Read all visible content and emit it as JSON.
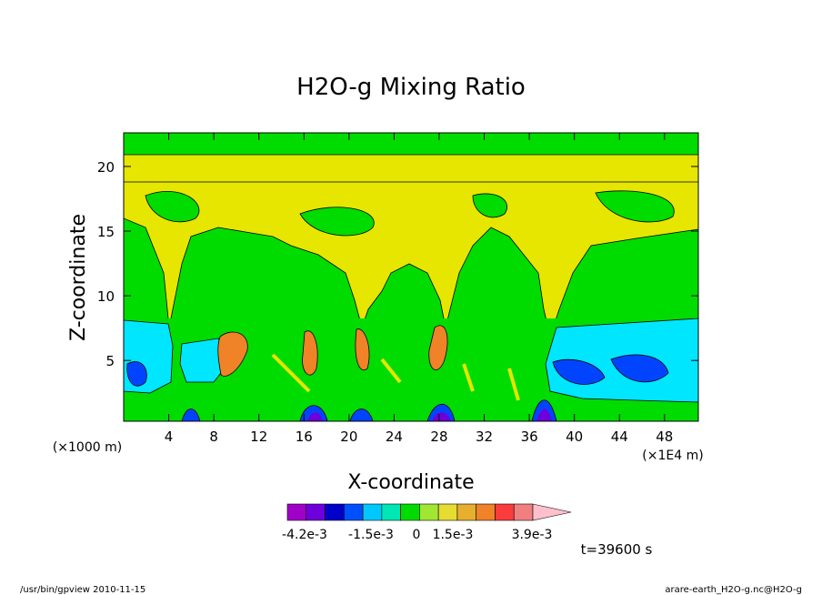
{
  "chart_data": {
    "type": "heatmap",
    "title": "H2O-g Mixing Ratio",
    "xlabel": "X-coordinate",
    "ylabel": "Z-coordinate",
    "x_unit_left": "(×1000 m)",
    "x_unit_right": "(×1E4 m)",
    "xlim": [
      0,
      51
    ],
    "ylim": [
      0.3,
      22.6
    ],
    "xticks": [
      4,
      8,
      12,
      16,
      20,
      24,
      28,
      32,
      36,
      40,
      44,
      48
    ],
    "yticks": [
      5,
      10,
      15,
      20
    ],
    "colorbar": {
      "colors": [
        "#a000c8",
        "#6e00dc",
        "#0000c8",
        "#0050ff",
        "#00c8ff",
        "#00e6b4",
        "#00dc00",
        "#a0e632",
        "#e6dc32",
        "#e6af2d",
        "#f08228",
        "#fa3c3c",
        "#f08080",
        "#ffc0cb"
      ],
      "labels": [
        "-4.2e-3",
        "-1.5e-3",
        "0",
        "1.5e-3",
        "3.9e-3"
      ]
    },
    "time_label": "t=39600 s"
  },
  "footer": {
    "left": "/usr/bin/gpview   2010-11-15",
    "right": "arare-earth_H2O-g.nc@H2O-g"
  }
}
